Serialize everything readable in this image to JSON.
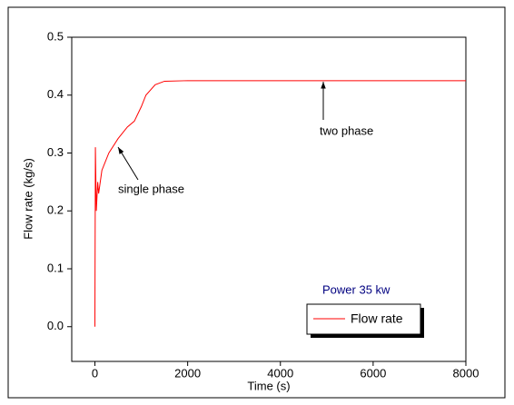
{
  "chart_data": {
    "type": "line",
    "x_label": "Time (s)",
    "y_label": "Flow rate (kg/s)",
    "x": [
      0,
      0,
      10,
      30,
      60,
      80,
      150,
      300,
      500,
      700,
      850,
      1000,
      1100,
      1300,
      1500,
      2000,
      5000,
      8000
    ],
    "series": [
      {
        "name": "Flow rate",
        "color": "#ff0000",
        "values": [
          0,
          0.02,
          0.31,
          0.2,
          0.25,
          0.23,
          0.27,
          0.3,
          0.325,
          0.345,
          0.355,
          0.38,
          0.4,
          0.418,
          0.424,
          0.425,
          0.425,
          0.425
        ]
      }
    ],
    "xlim": [
      -500,
      8000
    ],
    "xticks": [
      0,
      2000,
      4000,
      6000,
      8000
    ],
    "ylim": [
      -0.06,
      0.5
    ],
    "yticks": [
      {
        "value": 0,
        "label": "0.0"
      },
      0.1,
      0.2,
      0.3,
      0.4,
      0.5
    ],
    "annotations": [
      "single phase",
      "two phase",
      "Power 35 kw"
    ],
    "legend": "lower right",
    "grid": false
  }
}
